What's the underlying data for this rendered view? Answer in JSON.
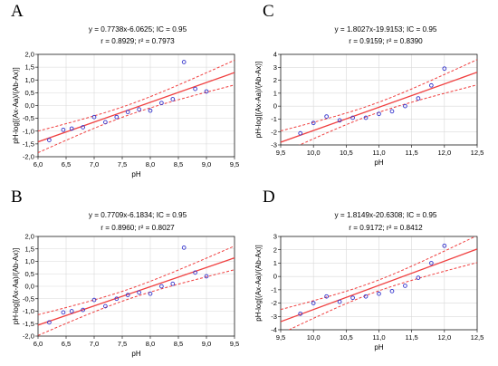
{
  "chart_data": [
    {
      "type": "scatter",
      "panel_label": "A",
      "equation": "y = 0.7738x-6.0625; IC = 0.95",
      "stats": "r = 0.8929; r² = 0.7973",
      "xlabel": "pH",
      "ylabel": "pH-log[(Ax-Aa)/(Ab-Ax)]",
      "xlim": [
        6.0,
        9.5
      ],
      "ylim": [
        -2.0,
        2.0
      ],
      "xticks": [
        "6,0",
        "6,5",
        "7,0",
        "7,5",
        "8,0",
        "8,5",
        "9,0",
        "9,5"
      ],
      "yticks": [
        "-2,0",
        "-1,5",
        "-1,0",
        "-0,5",
        "0,0",
        "0,5",
        "1,0",
        "1,5",
        "2,0"
      ],
      "grid": true,
      "fit": {
        "slope": 0.7738,
        "intercept": -6.0625
      },
      "points": [
        [
          6.2,
          -1.35
        ],
        [
          6.45,
          -0.95
        ],
        [
          6.6,
          -0.9
        ],
        [
          6.8,
          -0.85
        ],
        [
          7.0,
          -0.45
        ],
        [
          7.2,
          -0.65
        ],
        [
          7.4,
          -0.45
        ],
        [
          7.6,
          -0.25
        ],
        [
          7.8,
          -0.15
        ],
        [
          8.0,
          -0.2
        ],
        [
          8.2,
          0.1
        ],
        [
          8.4,
          0.25
        ],
        [
          8.6,
          1.7
        ],
        [
          8.8,
          0.65
        ],
        [
          9.0,
          0.55
        ]
      ],
      "colors": {
        "fit": "#f04040",
        "points": "#3333cc"
      }
    },
    {
      "type": "scatter",
      "panel_label": "C",
      "equation": "y = 1.8027x-19.9153; IC = 0.95",
      "stats": "r = 0.9159; r² = 0.8390",
      "xlabel": "pH",
      "ylabel": "pH-log[(Ax-Aa)/(Ab-Ax)]",
      "xlim": [
        9.5,
        12.5
      ],
      "ylim": [
        -3,
        4
      ],
      "xticks": [
        "9,5",
        "10,0",
        "10,5",
        "11,0",
        "11,5",
        "12,0",
        "12,5"
      ],
      "yticks": [
        "-3",
        "-2",
        "-1",
        "0",
        "1",
        "2",
        "3",
        "4"
      ],
      "grid": true,
      "fit": {
        "slope": 1.8027,
        "intercept": -19.9153
      },
      "points": [
        [
          9.8,
          -2.1
        ],
        [
          10.0,
          -1.3
        ],
        [
          10.2,
          -0.8
        ],
        [
          10.4,
          -1.1
        ],
        [
          10.6,
          -0.9
        ],
        [
          10.8,
          -0.9
        ],
        [
          11.0,
          -0.6
        ],
        [
          11.2,
          -0.4
        ],
        [
          11.4,
          0.0
        ],
        [
          11.6,
          0.6
        ],
        [
          11.8,
          1.6
        ],
        [
          12.0,
          2.9
        ]
      ],
      "colors": {
        "fit": "#f04040",
        "points": "#3333cc"
      }
    },
    {
      "type": "scatter",
      "panel_label": "B",
      "equation": "y = 0.7709x-6.1834; IC = 0.95",
      "stats": "r = 0.8960; r² = 0.8027",
      "xlabel": "pH",
      "ylabel": "pH-log[(Ax-Aa)/(Ab-Ax)]",
      "xlim": [
        6.0,
        9.5
      ],
      "ylim": [
        -2.0,
        2.0
      ],
      "xticks": [
        "6,0",
        "6,5",
        "7,0",
        "7,5",
        "8,0",
        "8,5",
        "9,0",
        "9,5"
      ],
      "yticks": [
        "-2,0",
        "-1,5",
        "-1,0",
        "-0,5",
        "0,0",
        "0,5",
        "1,0",
        "1,5",
        "2,0"
      ],
      "grid": true,
      "fit": {
        "slope": 0.7709,
        "intercept": -6.1834
      },
      "points": [
        [
          6.2,
          -1.45
        ],
        [
          6.45,
          -1.05
        ],
        [
          6.6,
          -1.0
        ],
        [
          6.8,
          -0.95
        ],
        [
          7.0,
          -0.55
        ],
        [
          7.2,
          -0.8
        ],
        [
          7.4,
          -0.5
        ],
        [
          7.6,
          -0.35
        ],
        [
          7.8,
          -0.25
        ],
        [
          8.0,
          -0.3
        ],
        [
          8.2,
          0.0
        ],
        [
          8.4,
          0.1
        ],
        [
          8.6,
          1.55
        ],
        [
          8.8,
          0.55
        ],
        [
          9.0,
          0.4
        ]
      ],
      "colors": {
        "fit": "#f04040",
        "points": "#3333cc"
      }
    },
    {
      "type": "scatter",
      "panel_label": "D",
      "equation": "y = 1.8149x-20.6308; IC = 0.95",
      "stats": "r = 0.9172; r² = 0.8412",
      "xlabel": "pH",
      "ylabel": "pH-log[(Ax-Aa)/(Ab-Ax)]",
      "xlim": [
        9.5,
        12.5
      ],
      "ylim": [
        -4,
        3
      ],
      "xticks": [
        "9,5",
        "10,0",
        "10,5",
        "11,0",
        "11,5",
        "12,0",
        "12,5"
      ],
      "yticks": [
        "-4",
        "-3",
        "-2",
        "-1",
        "0",
        "1",
        "2",
        "3"
      ],
      "grid": true,
      "fit": {
        "slope": 1.8149,
        "intercept": -20.6308
      },
      "points": [
        [
          9.8,
          -2.8
        ],
        [
          10.0,
          -2.0
        ],
        [
          10.2,
          -1.5
        ],
        [
          10.4,
          -1.9
        ],
        [
          10.6,
          -1.6
        ],
        [
          10.8,
          -1.5
        ],
        [
          11.0,
          -1.3
        ],
        [
          11.2,
          -1.1
        ],
        [
          11.4,
          -0.7
        ],
        [
          11.6,
          -0.1
        ],
        [
          11.8,
          1.0
        ],
        [
          12.0,
          2.3
        ]
      ],
      "colors": {
        "fit": "#f04040",
        "points": "#3333cc"
      }
    }
  ]
}
